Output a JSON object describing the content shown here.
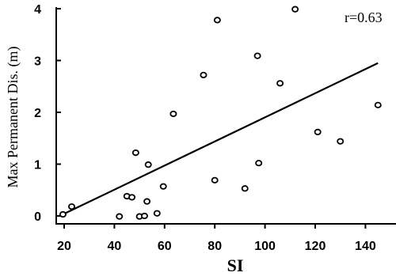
{
  "chart_data": {
    "type": "scatter",
    "title": "",
    "xlabel": "SI",
    "ylabel": "Max Permanent Dis. (m)",
    "xlim": [
      17,
      145
    ],
    "ylim": [
      -0.1,
      4.1
    ],
    "x_ticks": [
      "20",
      "40",
      "60",
      "80",
      "100",
      "120",
      "140"
    ],
    "y_ticks": [
      "0",
      "1",
      "2",
      "3",
      "4"
    ],
    "annotation": "r=0.63",
    "grid": false,
    "marker_style": "open-circle",
    "series": [
      {
        "points": [
          {
            "x": 19.5,
            "y": 0.03
          },
          {
            "x": 23,
            "y": 0.18
          },
          {
            "x": 42,
            "y": -0.01
          },
          {
            "x": 45,
            "y": 0.38
          },
          {
            "x": 47,
            "y": 0.36
          },
          {
            "x": 48.5,
            "y": 1.22
          },
          {
            "x": 50,
            "y": -0.01
          },
          {
            "x": 52,
            "y": 0.0
          },
          {
            "x": 53,
            "y": 0.28
          },
          {
            "x": 53.5,
            "y": 0.99
          },
          {
            "x": 57,
            "y": 0.05
          },
          {
            "x": 59.5,
            "y": 0.57
          },
          {
            "x": 63.5,
            "y": 1.97
          },
          {
            "x": 75.5,
            "y": 2.72
          },
          {
            "x": 80,
            "y": 0.69
          },
          {
            "x": 81,
            "y": 3.78
          },
          {
            "x": 92,
            "y": 0.53
          },
          {
            "x": 97,
            "y": 3.09
          },
          {
            "x": 97.5,
            "y": 1.02
          },
          {
            "x": 106,
            "y": 2.56
          },
          {
            "x": 112,
            "y": 3.99
          },
          {
            "x": 121,
            "y": 1.62
          },
          {
            "x": 130,
            "y": 1.44
          },
          {
            "x": 145,
            "y": 2.14
          }
        ]
      }
    ],
    "trendline": {
      "x": [
        19.5,
        145
      ],
      "y": [
        0.03,
        2.95
      ]
    }
  }
}
